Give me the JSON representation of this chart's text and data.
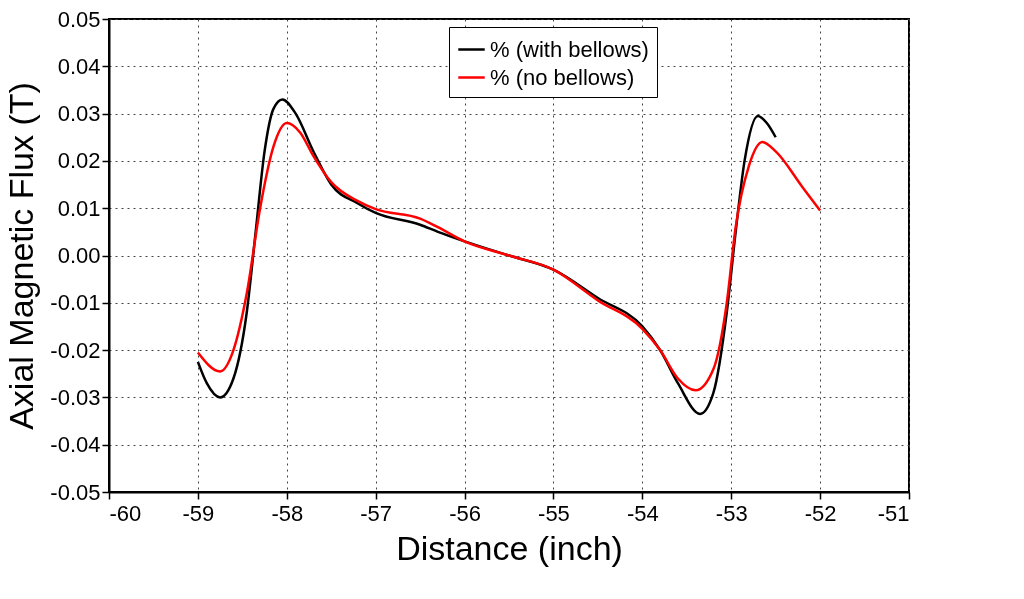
{
  "chart_data": {
    "type": "line",
    "xlabel": "Distance  (inch)",
    "ylabel": "Axial Magnetic Flux (T)",
    "xlim": [
      -60,
      -51
    ],
    "xticks": [
      -60,
      -59,
      -58,
      -57,
      -56,
      -55,
      -54,
      -53,
      -52,
      -51
    ],
    "ylim": [
      -0.05,
      0.05
    ],
    "yticks": [
      {
        "value": -0.05,
        "label": "-0.05"
      },
      {
        "value": -0.04,
        "label": "-0.04"
      },
      {
        "value": -0.03,
        "label": "-0.03"
      },
      {
        "value": -0.02,
        "label": "-0.02"
      },
      {
        "value": -0.01,
        "label": "-0.01"
      },
      {
        "value": 0,
        "label": "0.00"
      },
      {
        "value": 0.01,
        "label": "0.01"
      },
      {
        "value": 0.02,
        "label": "0.02"
      },
      {
        "value": 0.03,
        "label": "0.03"
      },
      {
        "value": 0.04,
        "label": "0.04"
      },
      {
        "value": 0.05,
        "label": "0.05"
      }
    ],
    "grid": true,
    "legend": "top right",
    "line_style": "solid",
    "series": [
      {
        "name": "% (with bellows)",
        "color": "#000000",
        "x": [
          -59,
          -58.9,
          -58.75,
          -58.6,
          -58.45,
          -58.35,
          -58.25,
          -58.15,
          -58.05,
          -57.9,
          -57.7,
          -57.5,
          -57.2,
          -57,
          -56.5,
          -56.3,
          -56,
          -55.5,
          -55,
          -54.5,
          -54,
          -53.8,
          -53.6,
          -53.35,
          -53.2,
          -53.05,
          -52.95,
          -52.85,
          -52.7,
          -52.6,
          -52.5
        ],
        "values": [
          -0.0225,
          -0.027,
          -0.03,
          -0.026,
          -0.012,
          0.005,
          0.022,
          0.031,
          0.033,
          0.03,
          0.022,
          0.015,
          0.011,
          0.009,
          0.0065,
          0.005,
          0.003,
          0.0,
          -0.003,
          -0.009,
          -0.015,
          -0.02,
          -0.027,
          -0.0335,
          -0.029,
          -0.012,
          0.005,
          0.02,
          0.0295,
          0.028,
          0.025
        ]
      },
      {
        "name": "% (no bellows)",
        "color": "#ff0000",
        "x": [
          -59,
          -58.75,
          -58.6,
          -58.45,
          -58.3,
          -58.15,
          -58,
          -57.85,
          -57.7,
          -57.5,
          -57.2,
          -57,
          -56.5,
          -56.3,
          -56,
          -55.5,
          -55,
          -54.5,
          -54,
          -53.8,
          -53.6,
          -53.4,
          -53.2,
          -53.05,
          -52.95,
          -52.8,
          -52.65,
          -52.5,
          -52.2,
          -52
        ],
        "values": [
          -0.0205,
          -0.0245,
          -0.02,
          -0.008,
          0.01,
          0.023,
          0.028,
          0.026,
          0.021,
          0.0155,
          0.0115,
          0.0098,
          0.0078,
          0.006,
          0.003,
          0.0,
          -0.003,
          -0.0095,
          -0.0155,
          -0.02,
          -0.026,
          -0.0285,
          -0.024,
          -0.01,
          0.006,
          0.019,
          0.024,
          0.022,
          0.0145,
          0.0095
        ]
      }
    ]
  }
}
